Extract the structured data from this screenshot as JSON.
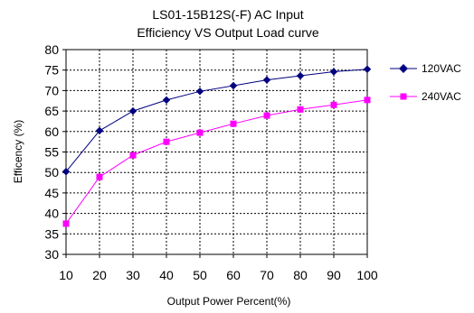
{
  "chart_data": {
    "type": "line",
    "title": [
      "LS01-15B12S(-F)   AC Input",
      "Efficiency VS Output Load curve"
    ],
    "xlabel": "Output Power Percent(%)",
    "ylabel": "Efficency (%)",
    "x": [
      10,
      20,
      30,
      40,
      50,
      60,
      70,
      80,
      90,
      100
    ],
    "xlim": [
      10,
      100
    ],
    "ylim": [
      30,
      80
    ],
    "yticks": [
      30,
      35,
      40,
      45,
      50,
      55,
      60,
      65,
      70,
      75,
      80
    ],
    "grid": true,
    "legend": "right",
    "series": [
      {
        "name": "120VAC",
        "color": "#000080",
        "marker": "diamond",
        "values": [
          50.2,
          60.2,
          65.0,
          67.7,
          69.8,
          71.2,
          72.6,
          73.6,
          74.6,
          75.2
        ]
      },
      {
        "name": "240VAC",
        "color": "#FF00FF",
        "marker": "square",
        "values": [
          37.5,
          48.9,
          54.2,
          57.5,
          59.7,
          61.9,
          63.9,
          65.4,
          66.5,
          67.7
        ]
      }
    ]
  }
}
